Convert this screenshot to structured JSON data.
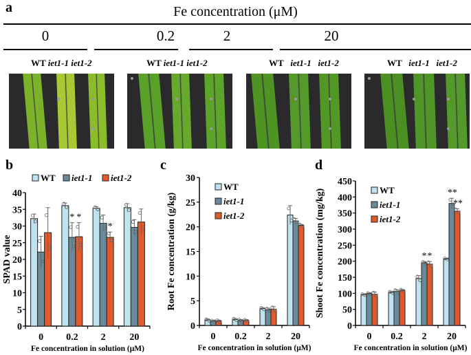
{
  "panel_a": {
    "letter": "a",
    "title": "Fe concentration (μM)",
    "groups": [
      {
        "conc": "0",
        "labels": [
          "WT",
          "iet1-1",
          "iet1-2"
        ],
        "leaf_colors": [
          "#7cb22a",
          "#a9c934",
          "#8bbd2b"
        ]
      },
      {
        "conc": "0.2",
        "labels": [
          "WT",
          "iet1-1",
          "iet1-2"
        ],
        "leaf_colors": [
          "#5aa12a",
          "#66a92c",
          "#5ea42a"
        ]
      },
      {
        "conc": "2",
        "labels": [
          "WT",
          "iet1-1",
          "iet1-2"
        ],
        "leaf_colors": [
          "#4f9423",
          "#55992a",
          "#519826"
        ]
      },
      {
        "conc": "20",
        "labels": [
          "WT",
          "iet1-1",
          "iet1-2"
        ],
        "leaf_colors": [
          "#4b8f23",
          "#4f9527",
          "#54992a"
        ]
      }
    ],
    "background_color": "#2a2a2c"
  },
  "colors": {
    "WT": "#bfe3ee",
    "iet1-1": "#6a8a9a",
    "iet1-2": "#e05a2b"
  },
  "chart_data": [
    {
      "panel": "b",
      "type": "bar",
      "title": "",
      "xlabel": "Fe concentration in solution (μM)",
      "ylabel": "SPAD value",
      "categories": [
        "0",
        "0.2",
        "2",
        "20"
      ],
      "ylim": [
        0,
        40
      ],
      "yticks": [
        0,
        5,
        10,
        15,
        20,
        25,
        30,
        35,
        40
      ],
      "legend": "top",
      "series": [
        {
          "name": "WT",
          "values": [
            32.2,
            36.1,
            35.3,
            35.5
          ],
          "errors": [
            1.4,
            0.8,
            0.5,
            1.2
          ],
          "sig": [
            "",
            "",
            "",
            ""
          ]
        },
        {
          "name": "iet1-1",
          "values": [
            22.2,
            26.6,
            30.8,
            29.6
          ],
          "errors": [
            4.7,
            4.4,
            2.5,
            2.3
          ],
          "sig": [
            "",
            "*",
            "",
            ""
          ]
        },
        {
          "name": "iet1-2",
          "values": [
            28.0,
            26.8,
            26.6,
            31.2
          ],
          "errors": [
            7.5,
            4.2,
            1.6,
            3.9
          ],
          "sig": [
            "",
            "*",
            "*",
            ""
          ]
        }
      ]
    },
    {
      "panel": "c",
      "type": "bar",
      "title": "",
      "xlabel": "Fe concentration in solution (μM)",
      "ylabel": "Root Fe concentration (g/kg)",
      "categories": [
        "0",
        "0.2",
        "2",
        "20"
      ],
      "ylim": [
        0,
        30
      ],
      "yticks": [
        0,
        5,
        10,
        15,
        20,
        25,
        30
      ],
      "legend": "top-left",
      "series": [
        {
          "name": "WT",
          "values": [
            1.1,
            1.2,
            3.4,
            22.4
          ],
          "errors": [
            0.2,
            0.2,
            0.2,
            1.9
          ],
          "sig": [
            "",
            "",
            "",
            ""
          ]
        },
        {
          "name": "iet1-1",
          "values": [
            0.9,
            1.0,
            3.2,
            21.2
          ],
          "errors": [
            0.1,
            0.2,
            0.3,
            0.5
          ],
          "sig": [
            "",
            "",
            "",
            ""
          ]
        },
        {
          "name": "iet1-2",
          "values": [
            0.9,
            1.0,
            3.3,
            20.3
          ],
          "errors": [
            0.2,
            0.2,
            0.5,
            0.2
          ],
          "sig": [
            "",
            "",
            "",
            ""
          ]
        }
      ]
    },
    {
      "panel": "d",
      "type": "bar",
      "title": "",
      "xlabel": "Fe concentration in solution (μM)",
      "ylabel": "Shoot Fe concentration (mg/kg)",
      "categories": [
        "0",
        "0.2",
        "2",
        "20"
      ],
      "ylim": [
        0,
        450
      ],
      "yticks": [
        0,
        50,
        100,
        150,
        200,
        250,
        300,
        350,
        400,
        450
      ],
      "legend": "top-left",
      "series": [
        {
          "name": "WT",
          "values": [
            96,
            103,
            146,
            207
          ],
          "errors": [
            2,
            2,
            9,
            2
          ],
          "sig": [
            "",
            "",
            "",
            ""
          ]
        },
        {
          "name": "iet1-1",
          "values": [
            99,
            106,
            195,
            380
          ],
          "errors": [
            2,
            5,
            4,
            16
          ],
          "sig": [
            "",
            "",
            "*",
            "**"
          ]
        },
        {
          "name": "iet1-2",
          "values": [
            97,
            109,
            191,
            356
          ],
          "errors": [
            7,
            3,
            8,
            7
          ],
          "sig": [
            "",
            "",
            "*",
            "**"
          ]
        }
      ]
    }
  ]
}
